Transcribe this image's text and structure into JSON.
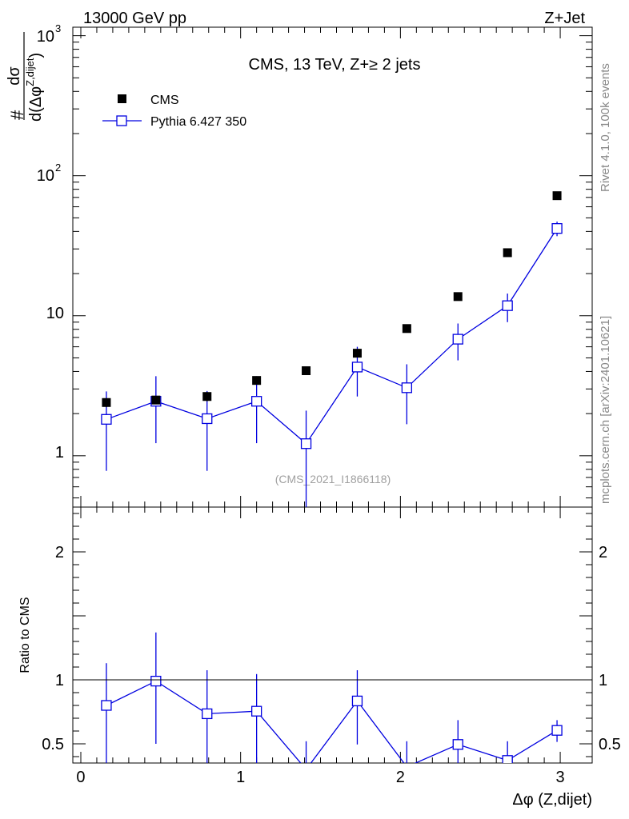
{
  "header": {
    "left_label": "13000 GeV pp",
    "right_label": "Z+Jet"
  },
  "side_labels": {
    "rivet": "Rivet 4.1.0,  100k events",
    "mcplots": "mcplots.cern.ch [arXiv:2401.10621]"
  },
  "colors": {
    "data": "#000000",
    "mc": "#0000e0",
    "watermark": "#a0a0a0"
  },
  "chart_data": [
    {
      "type": "scatter",
      "panel": "main",
      "title": "CMS, 13 TeV, Z+≥ 2 jets",
      "watermark": "(CMS_2021_I1866118)",
      "ylabel": {
        "prefix": "#",
        "numerator": "dσ",
        "denominator_lead": "d(Δφ",
        "denominator_sup": "Z,dijet",
        "denominator_close": ")"
      },
      "yscale": "log",
      "xlim": [
        -0.05,
        3.2
      ],
      "ylim": [
        0.43,
        1150
      ],
      "yticks": [
        {
          "value": 1,
          "label": "1"
        },
        {
          "value": 10,
          "label": "10"
        },
        {
          "value": 100,
          "label": "10",
          "sup": "2"
        },
        {
          "value": 1000,
          "label": "10",
          "sup": "3"
        }
      ],
      "legend": {
        "position": "top-left",
        "entries": [
          "CMS",
          "Pythia 6.427 350"
        ]
      },
      "series": [
        {
          "name": "CMS",
          "marker": "filled-square",
          "x": [
            0.16,
            0.47,
            0.79,
            1.1,
            1.41,
            1.73,
            2.04,
            2.36,
            2.67,
            2.98
          ],
          "y": [
            2.4,
            2.5,
            2.65,
            3.45,
            4.05,
            5.4,
            8.1,
            13.7,
            28.2,
            72
          ],
          "yerr_low": [
            0.18,
            0.15,
            0.2,
            0.2,
            0.2,
            0.35,
            0.35,
            0.55,
            0.9,
            2.0
          ],
          "yerr_high": [
            0.18,
            0.15,
            0.2,
            0.2,
            0.2,
            0.35,
            0.35,
            0.55,
            0.9,
            2.0
          ]
        },
        {
          "name": "Pythia 6.427 350",
          "marker": "open-square",
          "x": [
            0.16,
            0.47,
            0.79,
            1.1,
            1.41,
            1.73,
            2.04,
            2.36,
            2.67,
            2.98
          ],
          "y": [
            1.82,
            2.45,
            1.84,
            2.45,
            1.22,
            4.3,
            3.06,
            6.8,
            11.8,
            42
          ],
          "yerr_low": [
            1.04,
            1.22,
            1.06,
            1.22,
            0.9,
            1.65,
            1.38,
            2.0,
            2.8,
            5.0
          ],
          "yerr_high": [
            1.06,
            1.25,
            1.06,
            1.25,
            0.88,
            1.7,
            1.44,
            2.0,
            2.6,
            5.0
          ]
        }
      ]
    },
    {
      "type": "line",
      "panel": "ratio",
      "xlabel": "Δφ (Z,dijet)",
      "ylabel": "Ratio to CMS",
      "xlim": [
        -0.05,
        3.2
      ],
      "ylim": [
        0.35,
        2.35
      ],
      "reference_line": 1,
      "xticks": [
        {
          "value": 0,
          "label": "0"
        },
        {
          "value": 1,
          "label": "1"
        },
        {
          "value": 2,
          "label": "2"
        },
        {
          "value": 3,
          "label": "3"
        }
      ],
      "yticks": [
        {
          "value": 0.5,
          "label": "0.5"
        },
        {
          "value": 1,
          "label": "1"
        },
        {
          "value": 2,
          "label": "2"
        }
      ],
      "series": [
        {
          "name": "Pythia 6.427 350 / CMS",
          "x": [
            0.16,
            0.47,
            0.79,
            1.1,
            1.41,
            1.73,
            2.04,
            2.36,
            2.67,
            2.98
          ],
          "y": [
            0.8,
            0.99,
            0.735,
            0.755,
            0.3,
            0.835,
            0.32,
            0.495,
            0.37,
            0.605
          ],
          "yerr_low": [
            0.45,
            0.49,
            0.39,
            0.45,
            0.22,
            0.34,
            0.2,
            0.15,
            0.1,
            0.09
          ],
          "yerr_high": [
            0.33,
            0.38,
            0.34,
            0.29,
            0.22,
            0.24,
            0.2,
            0.19,
            0.15,
            0.08
          ]
        }
      ]
    }
  ]
}
